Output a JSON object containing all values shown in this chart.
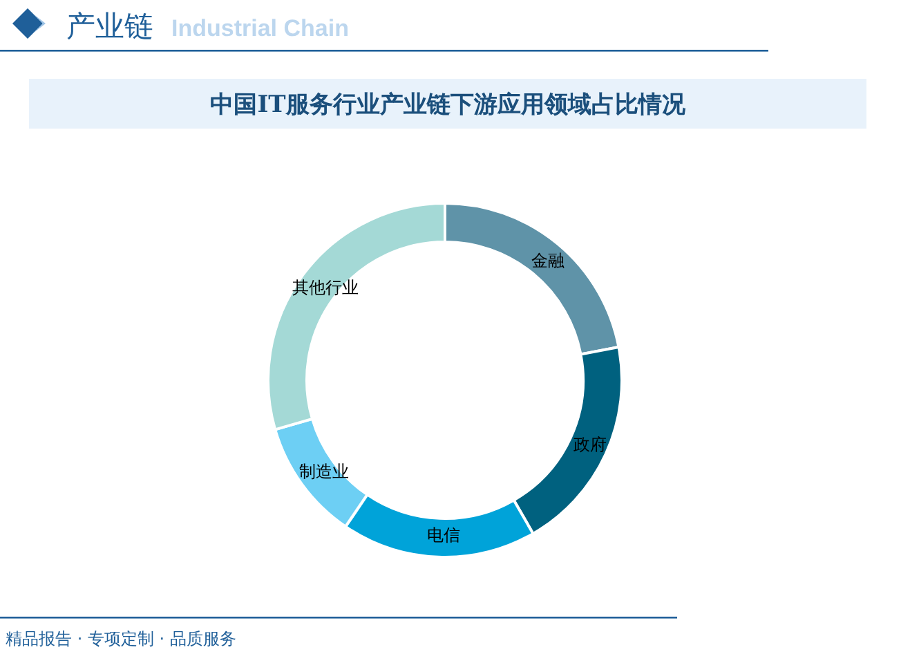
{
  "chart_data": {
    "type": "donut",
    "title": "中国IT服务行业产业链下游应用领域占比情况",
    "categories": [
      "金融",
      "政府",
      "电信",
      "制造业",
      "其他行业"
    ],
    "values": [
      22,
      19.7,
      17.8,
      11,
      29.5
    ],
    "colors": [
      "#5f93a8",
      "#00617f",
      "#00a3d9",
      "#6dcff4",
      "#a4d9d6"
    ],
    "annotations": [
      "产业链",
      "Industrial Chain",
      "精品报告 · 专项定制 · 品质服务"
    ]
  }
}
